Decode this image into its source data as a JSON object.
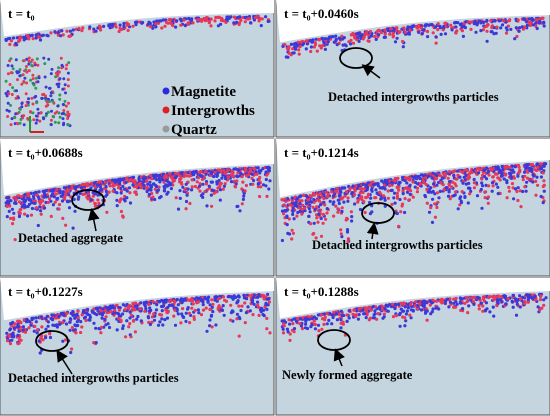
{
  "panels": [
    {
      "time": "t = t₀"
    },
    {
      "time": "t = t₀+0.0460s",
      "annotation": "Detached intergrowths particles"
    },
    {
      "time": "t = t₀+0.0688s",
      "annotation": "Detached aggregate"
    },
    {
      "time": "t = t₀+0.1214s",
      "annotation": "Detached intergrowths particles"
    },
    {
      "time": "t = t₀+0.1227s",
      "annotation": "Detached intergrowths particles"
    },
    {
      "time": "t = t₀+0.1288s",
      "annotation": "Newly formed aggregate"
    }
  ],
  "legend": [
    "Magnetite",
    "Intergrowths",
    "Quartz"
  ]
}
